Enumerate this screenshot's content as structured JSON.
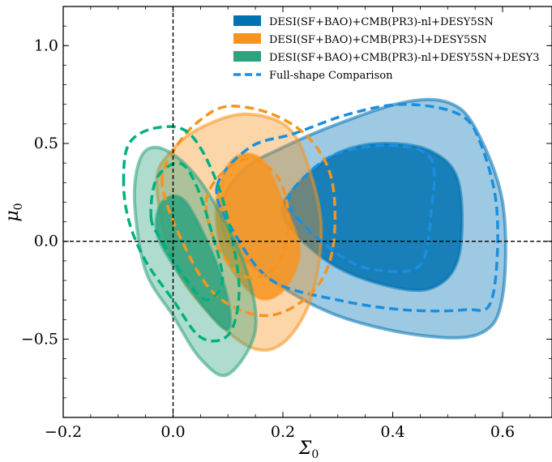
{
  "chart_data": {
    "type": "contour",
    "xlabel": "Σ",
    "xlabel_sub": "0",
    "ylabel": "μ",
    "ylabel_sub": "0",
    "xlim": [
      -0.2,
      0.69
    ],
    "ylim": [
      -0.9,
      1.2
    ],
    "x_ticks": [
      -0.2,
      0.0,
      0.2,
      0.4,
      0.6
    ],
    "x_tick_labels": [
      "−0.2",
      "0.0",
      "0.2",
      "0.4",
      "0.6"
    ],
    "y_ticks": [
      -0.5,
      0.0,
      0.5,
      1.0
    ],
    "y_tick_labels": [
      "−0.5",
      "0.0",
      "0.5",
      "1.0"
    ],
    "reference_lines": {
      "x": 0.0,
      "y": 0.0
    },
    "legend_position": "top-right",
    "legend": [
      {
        "label": "DESI(SF+BAO)+CMB(PR3)-nl+DESY5SN",
        "color": "#0072b2",
        "style": "fill"
      },
      {
        "label": "DESI(SF+BAO)+CMB(PR3)-l+DESY5SN",
        "color": "#f7941d",
        "style": "fill"
      },
      {
        "label": "DESI(SF+BAO)+CMB(PR3)-nl+DESY5SN+DESY3",
        "color": "#2ca37f",
        "style": "fill"
      },
      {
        "label": "Full-shape Comparison",
        "color": "#1a8fdf",
        "style": "dashed"
      }
    ],
    "series": [
      {
        "color": "#0072b2",
        "filled": true,
        "contours": [
          {
            "level": "95%",
            "points": [
              [
                0.09,
                0.2
              ],
              [
                0.13,
                0.37
              ],
              [
                0.2,
                0.48
              ],
              [
                0.3,
                0.6
              ],
              [
                0.42,
                0.71
              ],
              [
                0.5,
                0.71
              ],
              [
                0.55,
                0.58
              ],
              [
                0.6,
                0.2
              ],
              [
                0.6,
                -0.28
              ],
              [
                0.56,
                -0.47
              ],
              [
                0.45,
                -0.48
              ],
              [
                0.3,
                -0.38
              ],
              [
                0.18,
                -0.2
              ],
              [
                0.1,
                0.0
              ]
            ]
          },
          {
            "level": "68%",
            "points": [
              [
                0.2,
                0.13
              ],
              [
                0.23,
                0.3
              ],
              [
                0.3,
                0.45
              ],
              [
                0.38,
                0.5
              ],
              [
                0.47,
                0.46
              ],
              [
                0.52,
                0.3
              ],
              [
                0.52,
                -0.08
              ],
              [
                0.47,
                -0.24
              ],
              [
                0.38,
                -0.22
              ],
              [
                0.28,
                -0.1
              ]
            ]
          }
        ]
      },
      {
        "color": "#f7941d",
        "filled": true,
        "contours": [
          {
            "level": "95%",
            "points": [
              [
                -0.03,
                0.3
              ],
              [
                0.0,
                0.47
              ],
              [
                0.05,
                0.58
              ],
              [
                0.13,
                0.65
              ],
              [
                0.21,
                0.58
              ],
              [
                0.25,
                0.35
              ],
              [
                0.27,
                0.05
              ],
              [
                0.25,
                -0.3
              ],
              [
                0.2,
                -0.52
              ],
              [
                0.14,
                -0.54
              ],
              [
                0.06,
                -0.35
              ],
              [
                0.0,
                -0.1
              ]
            ]
          },
          {
            "level": "68%",
            "points": [
              [
                0.08,
                0.22
              ],
              [
                0.11,
                0.42
              ],
              [
                0.16,
                0.42
              ],
              [
                0.2,
                0.2
              ],
              [
                0.23,
                -0.05
              ],
              [
                0.2,
                -0.25
              ],
              [
                0.15,
                -0.28
              ],
              [
                0.09,
                -0.05
              ]
            ]
          }
        ]
      },
      {
        "color": "#2ca37f",
        "filled": true,
        "contours": [
          {
            "level": "95%",
            "points": [
              [
                -0.07,
                0.2
              ],
              [
                -0.06,
                0.42
              ],
              [
                -0.03,
                0.48
              ],
              [
                0.02,
                0.4
              ],
              [
                0.07,
                0.22
              ],
              [
                0.13,
                -0.12
              ],
              [
                0.15,
                -0.45
              ],
              [
                0.1,
                -0.68
              ],
              [
                0.05,
                -0.6
              ],
              [
                0.0,
                -0.38
              ],
              [
                -0.05,
                -0.15
              ]
            ]
          },
          {
            "level": "68%",
            "points": [
              [
                -0.03,
                0.05
              ],
              [
                -0.02,
                0.2
              ],
              [
                0.02,
                0.21
              ],
              [
                0.07,
                -0.05
              ],
              [
                0.1,
                -0.3
              ],
              [
                0.1,
                -0.45
              ],
              [
                0.06,
                -0.35
              ],
              [
                0.0,
                -0.12
              ]
            ]
          }
        ]
      },
      {
        "color": "#1a8fdf",
        "filled": false,
        "dashed": true,
        "contours": [
          {
            "level": "95%",
            "points": [
              [
                0.08,
                0.28
              ],
              [
                0.14,
                0.48
              ],
              [
                0.22,
                0.55
              ],
              [
                0.32,
                0.65
              ],
              [
                0.42,
                0.7
              ],
              [
                0.52,
                0.65
              ],
              [
                0.56,
                0.5
              ],
              [
                0.59,
                0.15
              ],
              [
                0.58,
                -0.3
              ],
              [
                0.53,
                -0.35
              ],
              [
                0.42,
                -0.35
              ],
              [
                0.3,
                -0.3
              ],
              [
                0.18,
                -0.2
              ],
              [
                0.11,
                0.05
              ]
            ]
          },
          {
            "level": "68%",
            "points": [
              [
                0.21,
                0.2
              ],
              [
                0.24,
                0.33
              ],
              [
                0.3,
                0.45
              ],
              [
                0.4,
                0.49
              ],
              [
                0.47,
                0.42
              ],
              [
                0.47,
                0.15
              ],
              [
                0.45,
                -0.12
              ],
              [
                0.38,
                -0.15
              ],
              [
                0.32,
                -0.1
              ],
              [
                0.25,
                0.05
              ]
            ]
          }
        ]
      },
      {
        "color": "#f7941d",
        "filled": false,
        "dashed": true,
        "contours": [
          {
            "level": "95%",
            "points": [
              [
                -0.02,
                0.3
              ],
              [
                0.01,
                0.5
              ],
              [
                0.05,
                0.62
              ],
              [
                0.1,
                0.69
              ],
              [
                0.18,
                0.65
              ],
              [
                0.25,
                0.52
              ],
              [
                0.29,
                0.3
              ],
              [
                0.29,
                -0.05
              ],
              [
                0.25,
                -0.27
              ],
              [
                0.17,
                -0.38
              ],
              [
                0.08,
                -0.28
              ],
              [
                0.02,
                -0.02
              ]
            ]
          },
          {
            "level": "68%",
            "points": [
              [
                0.06,
                0.2
              ],
              [
                0.09,
                0.35
              ],
              [
                0.14,
                0.42
              ],
              [
                0.19,
                0.33
              ],
              [
                0.21,
                0.12
              ],
              [
                0.19,
                -0.12
              ],
              [
                0.13,
                -0.18
              ],
              [
                0.08,
                -0.02
              ]
            ]
          }
        ]
      },
      {
        "color": "#00b080",
        "filled": false,
        "dashed": true,
        "contours": [
          {
            "level": "95%",
            "points": [
              [
                -0.09,
                0.3
              ],
              [
                -0.08,
                0.5
              ],
              [
                -0.03,
                0.58
              ],
              [
                0.03,
                0.55
              ],
              [
                0.08,
                0.3
              ],
              [
                0.11,
                -0.02
              ],
              [
                0.12,
                -0.28
              ],
              [
                0.1,
                -0.48
              ],
              [
                0.05,
                -0.49
              ],
              [
                0.0,
                -0.3
              ],
              [
                -0.05,
                -0.1
              ],
              [
                -0.08,
                0.1
              ]
            ]
          },
          {
            "level": "68%",
            "points": [
              [
                -0.04,
                0.12
              ],
              [
                -0.03,
                0.32
              ],
              [
                0.01,
                0.4
              ],
              [
                0.04,
                0.3
              ],
              [
                0.07,
                0.05
              ],
              [
                0.09,
                -0.2
              ],
              [
                0.06,
                -0.3
              ],
              [
                0.02,
                -0.18
              ],
              [
                -0.02,
                0.0
              ]
            ]
          }
        ]
      }
    ]
  }
}
